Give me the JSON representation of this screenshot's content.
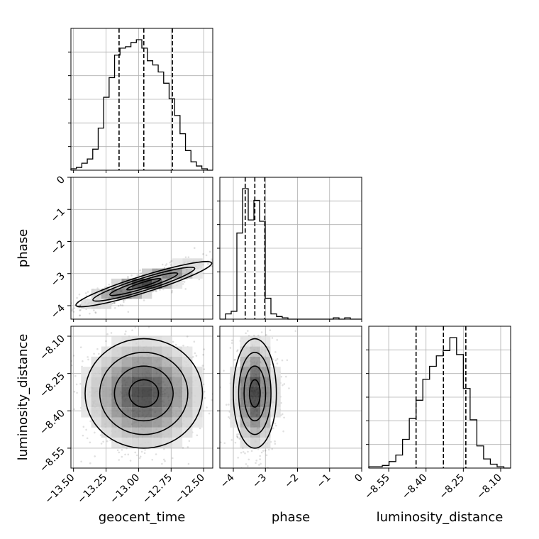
{
  "chart_data": {
    "type": "corner",
    "parameters": [
      "geocent_time",
      "phase",
      "luminosity_distance"
    ],
    "axis_labels": {
      "x": [
        "geocent_time",
        "phase",
        "luminosity_distance"
      ],
      "y": [
        "phase",
        "luminosity_distance"
      ]
    },
    "ranges": {
      "geocent_time": [
        -13.52,
        -12.43
      ],
      "phase": [
        -4.42,
        0.0
      ],
      "luminosity_distance": [
        -8.63,
        -8.06
      ]
    },
    "ticks": {
      "geocent_time": [
        "-13.50",
        "-13.25",
        "-13.00",
        "-12.75",
        "-12.50"
      ],
      "phase": [
        "-4",
        "-3",
        "-2",
        "-1",
        "0"
      ],
      "luminosity_distance": [
        "-8.55",
        "-8.40",
        "-8.25",
        "-8.10"
      ]
    },
    "quantiles": {
      "geocent_time": [
        -13.15,
        -12.96,
        -12.74
      ],
      "phase": [
        -3.63,
        -3.33,
        -3.02
      ],
      "luminosity_distance": [
        -8.44,
        -8.33,
        -8.24
      ]
    },
    "histograms": {
      "geocent_time": {
        "range": [
          -13.52,
          -12.43
        ],
        "counts": [
          1,
          2,
          5,
          8,
          15,
          30,
          52,
          66,
          82,
          87,
          88,
          91,
          93,
          87,
          78,
          75,
          70,
          62,
          51,
          39,
          26,
          14,
          6,
          3,
          1,
          0
        ]
      },
      "phase": {
        "range": [
          -4.42,
          0.0
        ],
        "counts": [
          0,
          4,
          6,
          66,
          100,
          76,
          91,
          75,
          16,
          4,
          2,
          1,
          0,
          0,
          0,
          0,
          0,
          0,
          0,
          0,
          1,
          0,
          1,
          0,
          0
        ]
      },
      "luminosity_distance": {
        "range": [
          -8.63,
          -8.06
        ],
        "counts": [
          1,
          1,
          2,
          5,
          10,
          22,
          38,
          52,
          68,
          78,
          86,
          90,
          100,
          87,
          61,
          37,
          17,
          7,
          3,
          1,
          0
        ]
      }
    },
    "correlation": {
      "geocent_time_phase": 0.85,
      "geocent_time_luminosity_distance": 0.0,
      "phase_luminosity_distance": 0.0
    },
    "contour_levels": 4,
    "grid": true
  }
}
